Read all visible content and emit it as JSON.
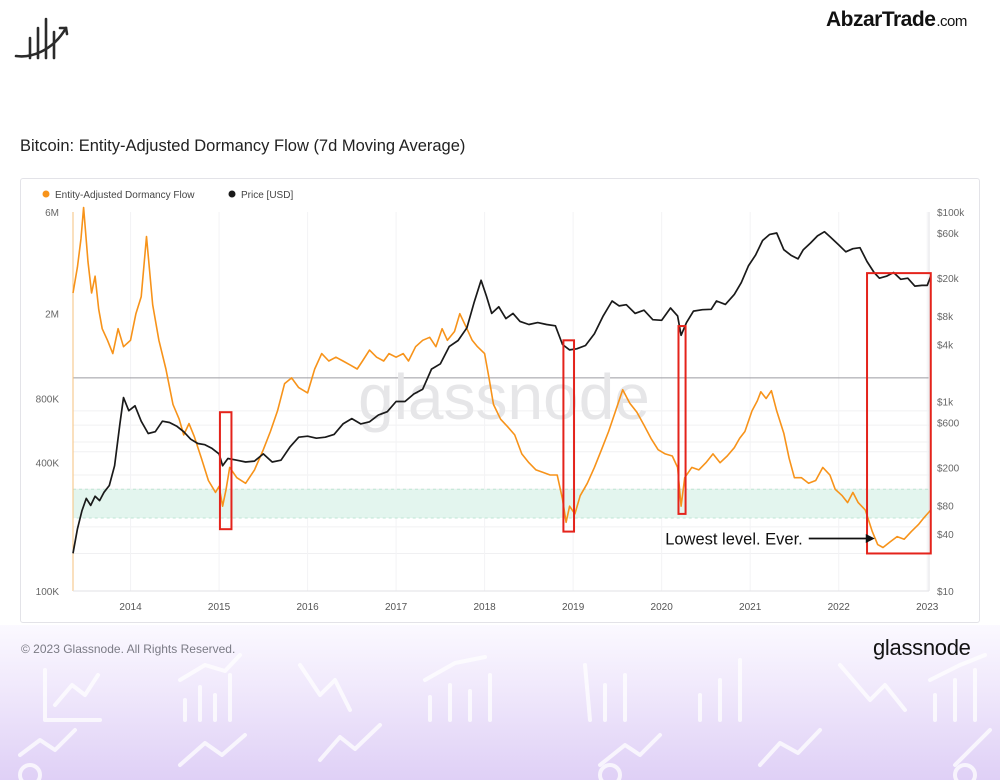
{
  "header": {
    "brand_name": "AbzarTrade",
    "brand_tld": ".com"
  },
  "chart_title": "Bitcoin: Entity-Adjusted Dormancy Flow (7d Moving Average)",
  "footer": {
    "copyright": "© 2023 Glassnode. All Rights Reserved.",
    "brand": "glassnode"
  },
  "watermark": "glassnode",
  "colors": {
    "dormancy": "#f7931a",
    "price": "#1a1a1a",
    "highlight": "#e4231b",
    "zone": "#e3f5ee"
  },
  "chart_data": {
    "type": "line",
    "title": "Bitcoin: Entity-Adjusted Dormancy Flow (7d Moving Average)",
    "legend": [
      "Entity-Adjusted Dormancy Flow",
      "Price [USD]"
    ],
    "legend_position": "top-left",
    "log_scale": true,
    "x_ticks": [
      "2014",
      "2015",
      "2016",
      "2017",
      "2018",
      "2019",
      "2020",
      "2021",
      "2022",
      "2023"
    ],
    "y_left_ticks": [
      {
        "label": "6M",
        "value": 6000000
      },
      {
        "label": "2M",
        "value": 2000000
      },
      {
        "label": "800K",
        "value": 800000
      },
      {
        "label": "400K",
        "value": 400000
      },
      {
        "label": "100K",
        "value": 100000
      }
    ],
    "y_right_ticks": [
      {
        "label": "$100k",
        "value": 100000
      },
      {
        "label": "$60k",
        "value": 60000
      },
      {
        "label": "$20k",
        "value": 20000
      },
      {
        "label": "$8k",
        "value": 8000
      },
      {
        "label": "$4k",
        "value": 4000
      },
      {
        "label": "$1k",
        "value": 1000
      },
      {
        "label": "$600",
        "value": 600
      },
      {
        "label": "$200",
        "value": 200
      },
      {
        "label": "$80",
        "value": 80
      },
      {
        "label": "$40",
        "value": 40
      },
      {
        "label": "$10",
        "value": 10
      }
    ],
    "y_left_range": [
      100000,
      6000000
    ],
    "y_right_range": [
      10,
      100000
    ],
    "reference_line_dormancy": 1000000,
    "green_zone_dormancy": [
      220000,
      300000
    ],
    "series": [
      {
        "name": "Entity-Adjusted Dormancy Flow",
        "points": [
          [
            2013.35,
            2500000
          ],
          [
            2013.4,
            3300000
          ],
          [
            2013.44,
            4500000
          ],
          [
            2013.47,
            6300000
          ],
          [
            2013.52,
            3500000
          ],
          [
            2013.56,
            2500000
          ],
          [
            2013.6,
            3000000
          ],
          [
            2013.64,
            2100000
          ],
          [
            2013.68,
            1700000
          ],
          [
            2013.74,
            1500000
          ],
          [
            2013.8,
            1300000
          ],
          [
            2013.86,
            1700000
          ],
          [
            2013.92,
            1400000
          ],
          [
            2014.0,
            1500000
          ],
          [
            2014.06,
            2000000
          ],
          [
            2014.12,
            2400000
          ],
          [
            2014.18,
            4600000
          ],
          [
            2014.25,
            2200000
          ],
          [
            2014.32,
            1500000
          ],
          [
            2014.4,
            1100000
          ],
          [
            2014.48,
            750000
          ],
          [
            2014.55,
            640000
          ],
          [
            2014.6,
            540000
          ],
          [
            2014.66,
            610000
          ],
          [
            2014.72,
            530000
          ],
          [
            2014.8,
            420000
          ],
          [
            2014.88,
            330000
          ],
          [
            2014.96,
            290000
          ],
          [
            2015.0,
            310000
          ],
          [
            2015.04,
            250000
          ],
          [
            2015.08,
            300000
          ],
          [
            2015.12,
            380000
          ],
          [
            2015.2,
            340000
          ],
          [
            2015.3,
            320000
          ],
          [
            2015.4,
            370000
          ],
          [
            2015.5,
            460000
          ],
          [
            2015.58,
            560000
          ],
          [
            2015.66,
            700000
          ],
          [
            2015.74,
            940000
          ],
          [
            2015.82,
            1000000
          ],
          [
            2015.9,
            900000
          ],
          [
            2016.0,
            850000
          ],
          [
            2016.08,
            1100000
          ],
          [
            2016.16,
            1300000
          ],
          [
            2016.24,
            1200000
          ],
          [
            2016.32,
            1250000
          ],
          [
            2016.4,
            1200000
          ],
          [
            2016.48,
            1150000
          ],
          [
            2016.56,
            1100000
          ],
          [
            2016.62,
            1200000
          ],
          [
            2016.7,
            1350000
          ],
          [
            2016.78,
            1250000
          ],
          [
            2016.86,
            1200000
          ],
          [
            2016.92,
            1300000
          ],
          [
            2017.0,
            1250000
          ],
          [
            2017.08,
            1300000
          ],
          [
            2017.14,
            1200000
          ],
          [
            2017.22,
            1400000
          ],
          [
            2017.3,
            1500000
          ],
          [
            2017.38,
            1550000
          ],
          [
            2017.45,
            1400000
          ],
          [
            2017.52,
            1700000
          ],
          [
            2017.58,
            1500000
          ],
          [
            2017.66,
            1650000
          ],
          [
            2017.72,
            2000000
          ],
          [
            2017.8,
            1700000
          ],
          [
            2017.86,
            1500000
          ],
          [
            2017.92,
            1400000
          ],
          [
            2018.0,
            1300000
          ],
          [
            2018.05,
            1000000
          ],
          [
            2018.1,
            750000
          ],
          [
            2018.18,
            640000
          ],
          [
            2018.26,
            590000
          ],
          [
            2018.34,
            540000
          ],
          [
            2018.42,
            440000
          ],
          [
            2018.5,
            400000
          ],
          [
            2018.58,
            370000
          ],
          [
            2018.66,
            360000
          ],
          [
            2018.74,
            350000
          ],
          [
            2018.82,
            350000
          ],
          [
            2018.88,
            270000
          ],
          [
            2018.92,
            210000
          ],
          [
            2018.96,
            250000
          ],
          [
            2019.02,
            230000
          ],
          [
            2019.08,
            280000
          ],
          [
            2019.16,
            320000
          ],
          [
            2019.24,
            380000
          ],
          [
            2019.32,
            460000
          ],
          [
            2019.4,
            560000
          ],
          [
            2019.48,
            700000
          ],
          [
            2019.56,
            880000
          ],
          [
            2019.64,
            760000
          ],
          [
            2019.72,
            690000
          ],
          [
            2019.8,
            600000
          ],
          [
            2019.88,
            520000
          ],
          [
            2019.96,
            460000
          ],
          [
            2020.04,
            440000
          ],
          [
            2020.12,
            430000
          ],
          [
            2020.18,
            380000
          ],
          [
            2020.22,
            250000
          ],
          [
            2020.26,
            340000
          ],
          [
            2020.34,
            380000
          ],
          [
            2020.42,
            370000
          ],
          [
            2020.5,
            400000
          ],
          [
            2020.58,
            440000
          ],
          [
            2020.66,
            400000
          ],
          [
            2020.74,
            430000
          ],
          [
            2020.82,
            470000
          ],
          [
            2020.88,
            520000
          ],
          [
            2020.94,
            560000
          ],
          [
            2021.02,
            700000
          ],
          [
            2021.08,
            780000
          ],
          [
            2021.12,
            860000
          ],
          [
            2021.18,
            800000
          ],
          [
            2021.24,
            870000
          ],
          [
            2021.3,
            700000
          ],
          [
            2021.38,
            550000
          ],
          [
            2021.44,
            420000
          ],
          [
            2021.5,
            340000
          ],
          [
            2021.58,
            340000
          ],
          [
            2021.66,
            320000
          ],
          [
            2021.74,
            330000
          ],
          [
            2021.82,
            380000
          ],
          [
            2021.9,
            350000
          ],
          [
            2021.96,
            300000
          ],
          [
            2022.04,
            280000
          ],
          [
            2022.1,
            260000
          ],
          [
            2022.16,
            290000
          ],
          [
            2022.22,
            260000
          ],
          [
            2022.3,
            240000
          ],
          [
            2022.38,
            190000
          ],
          [
            2022.44,
            165000
          ],
          [
            2022.5,
            160000
          ],
          [
            2022.58,
            170000
          ],
          [
            2022.66,
            180000
          ],
          [
            2022.74,
            175000
          ],
          [
            2022.82,
            190000
          ],
          [
            2022.9,
            205000
          ],
          [
            2022.96,
            220000
          ],
          [
            2023.04,
            240000
          ]
        ]
      },
      {
        "name": "Price [USD]",
        "points": [
          [
            2013.35,
            25
          ],
          [
            2013.4,
            45
          ],
          [
            2013.45,
            70
          ],
          [
            2013.5,
            95
          ],
          [
            2013.55,
            80
          ],
          [
            2013.6,
            100
          ],
          [
            2013.65,
            90
          ],
          [
            2013.7,
            110
          ],
          [
            2013.76,
            130
          ],
          [
            2013.82,
            210
          ],
          [
            2013.88,
            580
          ],
          [
            2013.92,
            1100
          ],
          [
            2013.98,
            800
          ],
          [
            2014.05,
            900
          ],
          [
            2014.12,
            620
          ],
          [
            2014.2,
            460
          ],
          [
            2014.28,
            480
          ],
          [
            2014.36,
            620
          ],
          [
            2014.44,
            600
          ],
          [
            2014.52,
            550
          ],
          [
            2014.6,
            480
          ],
          [
            2014.68,
            400
          ],
          [
            2014.76,
            360
          ],
          [
            2014.84,
            350
          ],
          [
            2014.92,
            320
          ],
          [
            2015.0,
            280
          ],
          [
            2015.04,
            210
          ],
          [
            2015.1,
            250
          ],
          [
            2015.2,
            240
          ],
          [
            2015.3,
            230
          ],
          [
            2015.4,
            235
          ],
          [
            2015.5,
            280
          ],
          [
            2015.6,
            230
          ],
          [
            2015.7,
            240
          ],
          [
            2015.8,
            330
          ],
          [
            2015.9,
            420
          ],
          [
            2016.0,
            430
          ],
          [
            2016.1,
            410
          ],
          [
            2016.2,
            420
          ],
          [
            2016.3,
            450
          ],
          [
            2016.4,
            580
          ],
          [
            2016.5,
            660
          ],
          [
            2016.6,
            580
          ],
          [
            2016.7,
            610
          ],
          [
            2016.8,
            720
          ],
          [
            2016.9,
            780
          ],
          [
            2017.0,
            1000
          ],
          [
            2017.1,
            1000
          ],
          [
            2017.2,
            1200
          ],
          [
            2017.3,
            1350
          ],
          [
            2017.4,
            2200
          ],
          [
            2017.5,
            2500
          ],
          [
            2017.6,
            3800
          ],
          [
            2017.7,
            4400
          ],
          [
            2017.8,
            6000
          ],
          [
            2017.88,
            11000
          ],
          [
            2017.96,
            19000
          ],
          [
            2018.02,
            13000
          ],
          [
            2018.08,
            8500
          ],
          [
            2018.16,
            10000
          ],
          [
            2018.24,
            7500
          ],
          [
            2018.32,
            8500
          ],
          [
            2018.4,
            7000
          ],
          [
            2018.5,
            6500
          ],
          [
            2018.6,
            6800
          ],
          [
            2018.7,
            6500
          ],
          [
            2018.8,
            6300
          ],
          [
            2018.88,
            4000
          ],
          [
            2018.96,
            3500
          ],
          [
            2019.04,
            3600
          ],
          [
            2019.14,
            3900
          ],
          [
            2019.24,
            5200
          ],
          [
            2019.34,
            8000
          ],
          [
            2019.44,
            11500
          ],
          [
            2019.52,
            10200
          ],
          [
            2019.6,
            10500
          ],
          [
            2019.7,
            8500
          ],
          [
            2019.8,
            9200
          ],
          [
            2019.9,
            7300
          ],
          [
            2020.0,
            7200
          ],
          [
            2020.1,
            9700
          ],
          [
            2020.18,
            8000
          ],
          [
            2020.22,
            5000
          ],
          [
            2020.28,
            6800
          ],
          [
            2020.36,
            9000
          ],
          [
            2020.46,
            9300
          ],
          [
            2020.56,
            9400
          ],
          [
            2020.62,
            11500
          ],
          [
            2020.72,
            10600
          ],
          [
            2020.82,
            13500
          ],
          [
            2020.9,
            18000
          ],
          [
            2020.98,
            27000
          ],
          [
            2021.06,
            35000
          ],
          [
            2021.14,
            50000
          ],
          [
            2021.22,
            58000
          ],
          [
            2021.3,
            60000
          ],
          [
            2021.38,
            40000
          ],
          [
            2021.46,
            35000
          ],
          [
            2021.54,
            32000
          ],
          [
            2021.6,
            40000
          ],
          [
            2021.68,
            47000
          ],
          [
            2021.76,
            56000
          ],
          [
            2021.84,
            62000
          ],
          [
            2021.9,
            55000
          ],
          [
            2022.0,
            45000
          ],
          [
            2022.08,
            38000
          ],
          [
            2022.16,
            41000
          ],
          [
            2022.24,
            42000
          ],
          [
            2022.32,
            30000
          ],
          [
            2022.4,
            23000
          ],
          [
            2022.46,
            20000
          ],
          [
            2022.54,
            21000
          ],
          [
            2022.62,
            23000
          ],
          [
            2022.7,
            19500
          ],
          [
            2022.78,
            20000
          ],
          [
            2022.86,
            16500
          ],
          [
            2022.94,
            16800
          ],
          [
            2023.0,
            16800
          ],
          [
            2023.04,
            21000
          ]
        ]
      }
    ],
    "highlight_boxes": [
      {
        "x_from": 2015.01,
        "x_to": 2015.14,
        "dormancy_from": 195000,
        "dormancy_to": 690000
      },
      {
        "x_from": 2018.89,
        "x_to": 2019.01,
        "dormancy_from": 190000,
        "dormancy_to": 1500000
      },
      {
        "x_from": 2020.19,
        "x_to": 2020.27,
        "dormancy_from": 230000,
        "dormancy_to": 1750000
      },
      {
        "x_from": 2022.32,
        "x_to": 2023.04,
        "dormancy_from": 150000,
        "dormancy_to": 3100000
      }
    ],
    "annotation": {
      "text": "Lowest level. Ever.",
      "x": 2022.43,
      "value": 160000
    }
  }
}
